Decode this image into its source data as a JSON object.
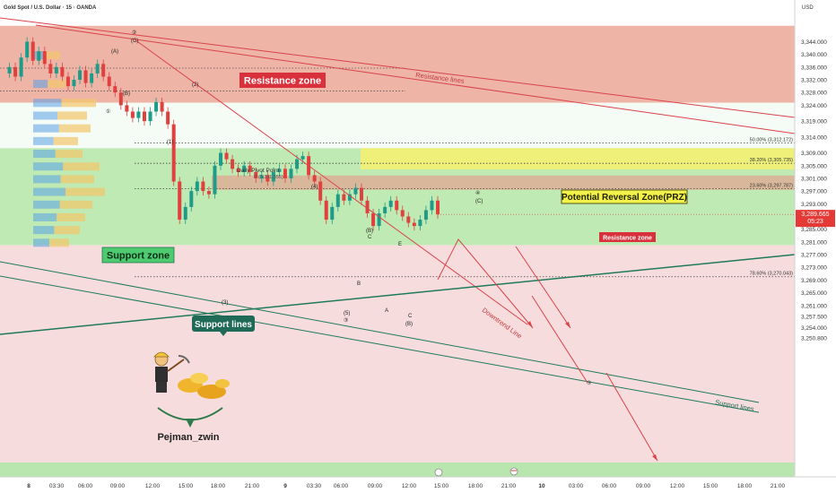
{
  "header": {
    "symbol_title": "Gold Spot / U.S. Dollar · 15 · OANDA"
  },
  "price_axis": {
    "currency": "USD",
    "ticks": [
      3344.0,
      3340.0,
      3336.0,
      3332.0,
      3328.0,
      3324.0,
      3319.0,
      3314.0,
      3309.0,
      3305.0,
      3301.0,
      3297.0,
      3293.0,
      3289.0,
      3285.0,
      3281.0,
      3277.0,
      3273.0,
      3269.0,
      3265.0,
      3261.0,
      3257.5,
      3254.0,
      3250.8
    ],
    "tick_labels": [
      "3,344.000",
      "3,340.000",
      "3,336.000",
      "3,332.000",
      "3,328.000",
      "3,324.000",
      "3,319.000",
      "3,314.000",
      "3,309.000",
      "3,305.000",
      "3,301.000",
      "3,297.000",
      "3,293.000",
      "3,289.000",
      "3,285.000",
      "3,281.000",
      "3,277.000",
      "3,273.000",
      "3,269.000",
      "3,265.000",
      "3,261.000",
      "3,257.500",
      "3,254.000",
      "3,250.800"
    ],
    "current_price_label": "3,289.665",
    "countdown_label": "05:23",
    "current_price": 3289.665
  },
  "time_axis": {
    "labels": [
      "8",
      "03:30",
      "06:00",
      "09:00",
      "12:00",
      "15:00",
      "18:00",
      "21:00",
      "9",
      "03:30",
      "06:00",
      "09:00",
      "12:00",
      "15:00",
      "18:00",
      "21:00",
      "10",
      "03:00",
      "06:00",
      "09:00",
      "12:00",
      "15:00",
      "18:00",
      "21:00"
    ]
  },
  "zones": {
    "resistance_zone_label": "Resistance zone",
    "support_zone_label": "Support zone",
    "prz_label": "Potential Reversal Zone(PRZ)",
    "inner_resistance_label": "Resistance zone"
  },
  "lines": {
    "resistance_lines_label": "Resistance lines",
    "support_lines_label": "Support lines",
    "support_lines_label_2": "Support lines",
    "downtrend_line_label": "Downtrend Line",
    "daily_pivot_label": "Daily Pivot Point",
    "pivot_sub_label": "P (3,311.355)"
  },
  "fib_levels": [
    {
      "label": "50.00% (3,312.172)",
      "value": 3312.172
    },
    {
      "label": "38.20% (3,305.735)",
      "value": 3305.735
    },
    {
      "label": "23.60% (3,297.787)",
      "value": 3297.787
    },
    {
      "label": "78.60% (3,270.043)",
      "value": 3270.043
    }
  ],
  "wave_labels": {
    "w2_circle": "②",
    "wC_top": "(C)",
    "wA": "(A)",
    "wB": "(B)",
    "w1_circle": "①",
    "w2": "(2)",
    "w1": "(1)",
    "w4": "(4)",
    "w3": "(3)",
    "w4_circle": "④",
    "wC_right": "(C)",
    "wB2": "(B)",
    "wC_small": "C",
    "wE": "E",
    "wB_small": "B",
    "w5": "(5)",
    "w3_circle": "③",
    "wA_small": "A",
    "wC2": "C",
    "wB3": "(B)",
    "w5_circle": "⑤"
  },
  "watermark": {
    "author": "Pejman_zwin"
  },
  "chart_data": {
    "type": "candlestick",
    "title": "Gold Spot / U.S. Dollar · 15 · OANDA",
    "ylim": [
      3249,
      3349
    ],
    "resistance_zone": [
      3324.8,
      3349
    ],
    "support_zone": [
      3280,
      3310.5
    ],
    "prz_zone": [
      3303.8,
      3310.5
    ],
    "inner_resistance_zone": [
      3297.4,
      3301.9
    ],
    "close_series": [
      3334,
      3336,
      3333,
      3339,
      3344,
      3338,
      3341,
      3337,
      3334,
      3336,
      3333,
      3330,
      3332,
      3335,
      3331,
      3334,
      3337,
      3333,
      3330,
      3328,
      3324,
      3322,
      3320,
      3322,
      3319,
      3322,
      3325,
      3322,
      3318,
      3300,
      3288,
      3292,
      3297,
      3300,
      3297,
      3296,
      3305,
      3309,
      3307,
      3304,
      3303,
      3305,
      3303,
      3301,
      3302,
      3300,
      3303,
      3304,
      3301,
      3304,
      3307,
      3308,
      3302,
      3300,
      3294,
      3288,
      3292,
      3296,
      3294,
      3296,
      3298,
      3294,
      3290,
      3286,
      3290,
      3292,
      3294,
      3291,
      3289,
      3287,
      3286,
      3288,
      3291,
      3294,
      3289.665
    ]
  }
}
